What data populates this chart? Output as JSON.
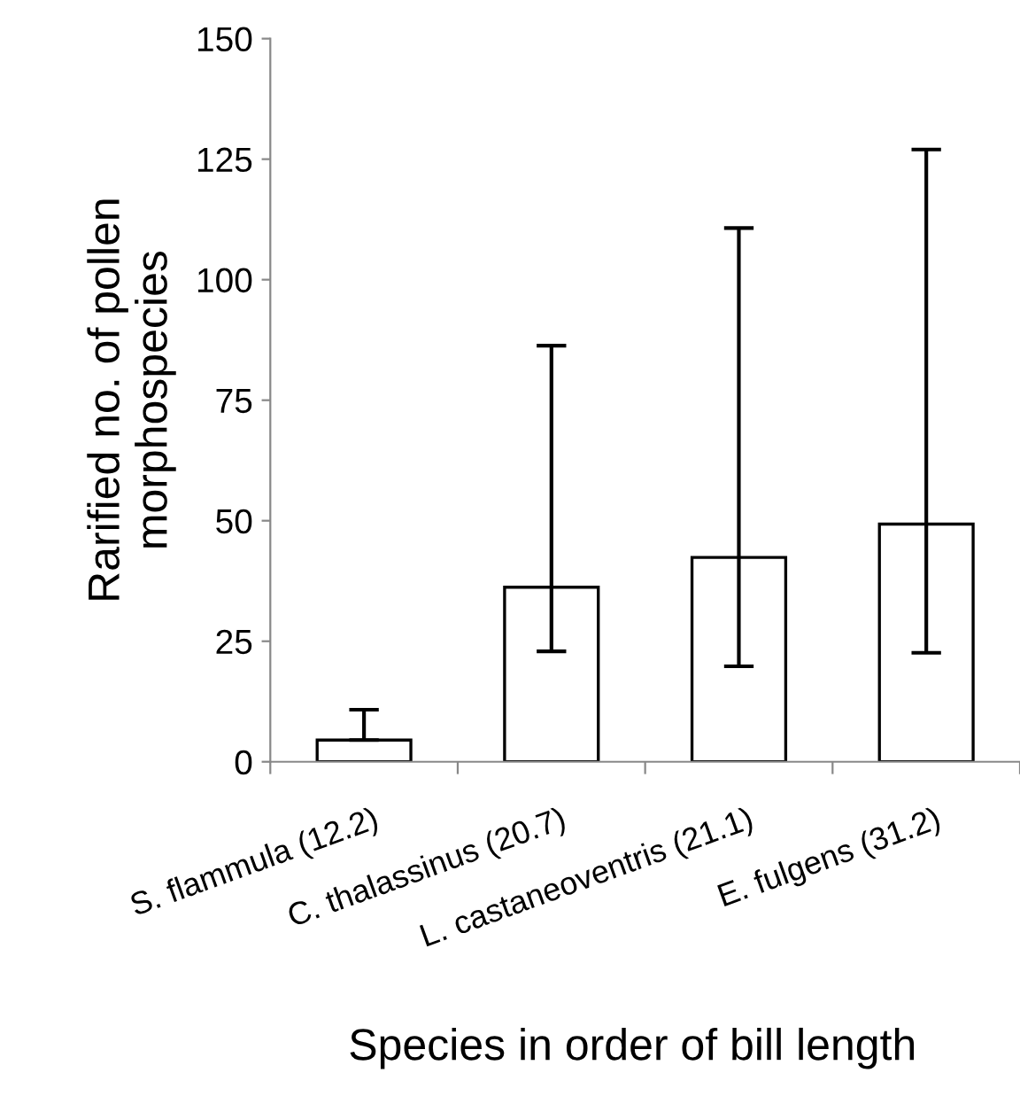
{
  "chart_data": {
    "type": "bar",
    "xlabel": "Species in order of bill length",
    "ylabel": "Rarified no. of pollen\nmorphospecies",
    "categories": [
      "S. flammula (12.2)",
      "C. thalassinus (20.7)",
      "L. castaneoventris (21.1)",
      "E. fulgens (31.2)"
    ],
    "values": [
      4.5,
      36.2,
      42.4,
      49.3
    ],
    "errors": [
      [
        4.5,
        10.8
      ],
      [
        22.9,
        86.3
      ],
      [
        19.8,
        110.7
      ],
      [
        22.6,
        127
      ]
    ],
    "color": "#ffffff",
    "ylim": [
      0,
      150
    ],
    "yticks": [
      0,
      25,
      50,
      75,
      100,
      125,
      150
    ],
    "grid": false
  }
}
